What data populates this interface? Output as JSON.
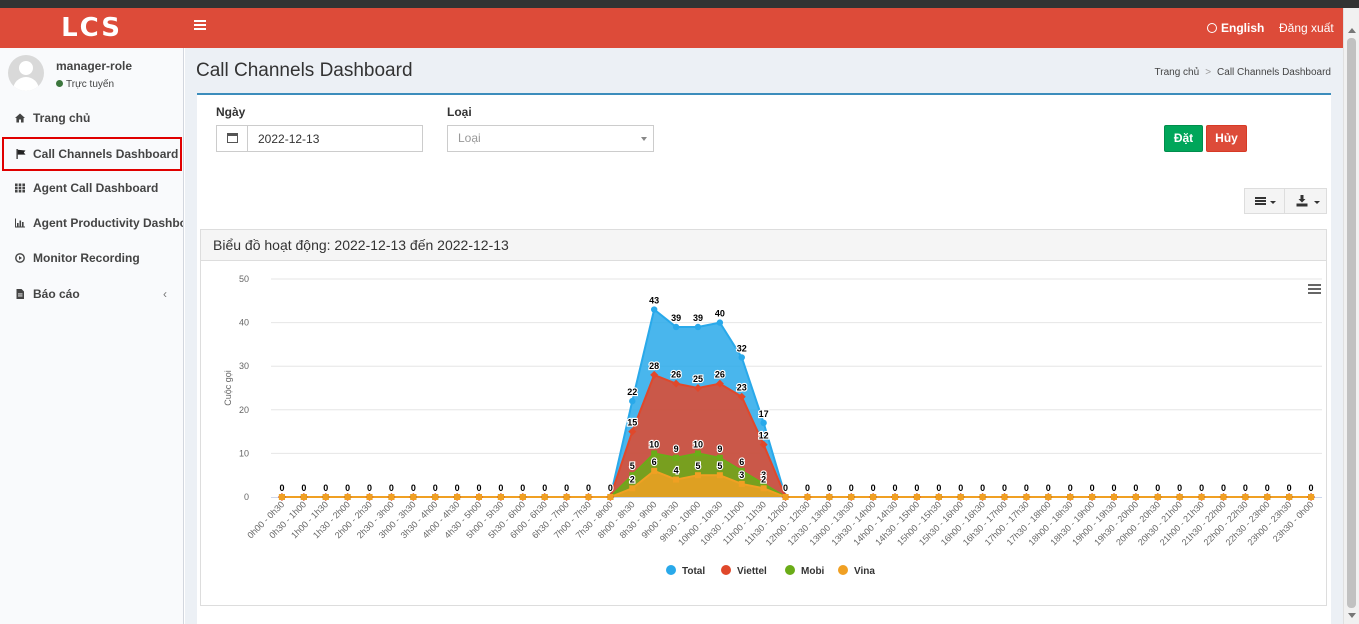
{
  "header": {
    "logo": "LCS",
    "language": "English",
    "logout": "Đăng xuất"
  },
  "user": {
    "name": "manager-role",
    "status": "Trực tuyến"
  },
  "sidebar": {
    "items": [
      {
        "label": "Trang chủ",
        "icon": "home-icon"
      },
      {
        "label": "Call Channels Dashboard",
        "icon": "flag-icon",
        "active": true
      },
      {
        "label": "Agent Call Dashboard",
        "icon": "grid-icon"
      },
      {
        "label": "Agent Productivity Dashboard",
        "icon": "bar-chart-icon"
      },
      {
        "label": "Monitor Recording",
        "icon": "play-circle-icon"
      },
      {
        "label": "Báo cáo",
        "icon": "file-icon",
        "chevron": "‹"
      }
    ]
  },
  "page": {
    "title": "Call Channels Dashboard",
    "breadcrumb": {
      "home": "Trang chủ",
      "current": "Call Channels Dashboard"
    }
  },
  "filters": {
    "date_label": "Ngày",
    "date_value": "2022-12-13",
    "type_label": "Loại",
    "type_placeholder": "Loại",
    "ok_label": "Đặt",
    "cancel_label": "Hủy"
  },
  "chart_panel": {
    "title": "Biểu đồ hoạt động: 2022-12-13 đến 2022-12-13"
  },
  "colors": {
    "header": "#dd4b39",
    "total": "#29a9ea",
    "viettel": "#e0482b",
    "mobi": "#6aac18",
    "vina": "#f0a023"
  },
  "chart_data": {
    "type": "area",
    "ylabel": "Cuộc gọi",
    "ylim": [
      0,
      50
    ],
    "yticks": [
      0,
      10,
      20,
      30,
      40,
      50
    ],
    "categories": [
      "0h00 - 0h30",
      "0h30 - 1h00",
      "1h00 - 1h30",
      "1h30 - 2h00",
      "2h00 - 2h30",
      "2h30 - 3h00",
      "3h00 - 3h30",
      "3h30 - 4h00",
      "4h00 - 4h30",
      "4h30 - 5h00",
      "5h00 - 5h30",
      "5h30 - 6h00",
      "6h00 - 6h30",
      "6h30 - 7h00",
      "7h00 - 7h30",
      "7h30 - 8h00",
      "8h00 - 8h30",
      "8h30 - 9h00",
      "9h00 - 9h30",
      "9h30 - 10h00",
      "10h00 - 10h30",
      "10h30 - 11h00",
      "11h00 - 11h30",
      "11h30 - 12h00",
      "12h00 - 12h30",
      "12h30 - 13h00",
      "13h00 - 13h30",
      "13h30 - 14h00",
      "14h00 - 14h30",
      "14h30 - 15h00",
      "15h00 - 15h30",
      "15h30 - 16h00",
      "16h00 - 16h30",
      "16h30 - 17h00",
      "17h00 - 17h30",
      "17h30 - 18h00",
      "18h00 - 18h30",
      "18h30 - 19h00",
      "19h00 - 19h30",
      "19h30 - 20h00",
      "20h00 - 20h30",
      "20h30 - 21h00",
      "21h00 - 21h30",
      "21h30 - 22h00",
      "22h00 - 22h30",
      "22h30 - 23h00",
      "23h00 - 23h30",
      "23h30 - 0h00"
    ],
    "series": [
      {
        "name": "Total",
        "color": "#29a9ea",
        "values": [
          0,
          0,
          0,
          0,
          0,
          0,
          0,
          0,
          0,
          0,
          0,
          0,
          0,
          0,
          0,
          0,
          22,
          43,
          39,
          39,
          40,
          32,
          17,
          0,
          0,
          0,
          0,
          0,
          0,
          0,
          0,
          0,
          0,
          0,
          0,
          0,
          0,
          0,
          0,
          0,
          0,
          0,
          0,
          0,
          0,
          0,
          0,
          0
        ]
      },
      {
        "name": "Viettel",
        "color": "#e0482b",
        "values": [
          0,
          0,
          0,
          0,
          0,
          0,
          0,
          0,
          0,
          0,
          0,
          0,
          0,
          0,
          0,
          0,
          15,
          28,
          26,
          25,
          26,
          23,
          12,
          0,
          0,
          0,
          0,
          0,
          0,
          0,
          0,
          0,
          0,
          0,
          0,
          0,
          0,
          0,
          0,
          0,
          0,
          0,
          0,
          0,
          0,
          0,
          0,
          0
        ]
      },
      {
        "name": "Mobi",
        "color": "#6aac18",
        "values": [
          0,
          0,
          0,
          0,
          0,
          0,
          0,
          0,
          0,
          0,
          0,
          0,
          0,
          0,
          0,
          0,
          5,
          10,
          9,
          10,
          9,
          6,
          3,
          0,
          0,
          0,
          0,
          0,
          0,
          0,
          0,
          0,
          0,
          0,
          0,
          0,
          0,
          0,
          0,
          0,
          0,
          0,
          0,
          0,
          0,
          0,
          0,
          0
        ]
      },
      {
        "name": "Vina",
        "color": "#f0a023",
        "values": [
          0,
          0,
          0,
          0,
          0,
          0,
          0,
          0,
          0,
          0,
          0,
          0,
          0,
          0,
          0,
          0,
          2,
          6,
          4,
          5,
          5,
          3,
          2,
          0,
          0,
          0,
          0,
          0,
          0,
          0,
          0,
          0,
          0,
          0,
          0,
          0,
          0,
          0,
          0,
          0,
          0,
          0,
          0,
          0,
          0,
          0,
          0,
          0
        ]
      }
    ],
    "grid": true,
    "legend": "bottom"
  }
}
